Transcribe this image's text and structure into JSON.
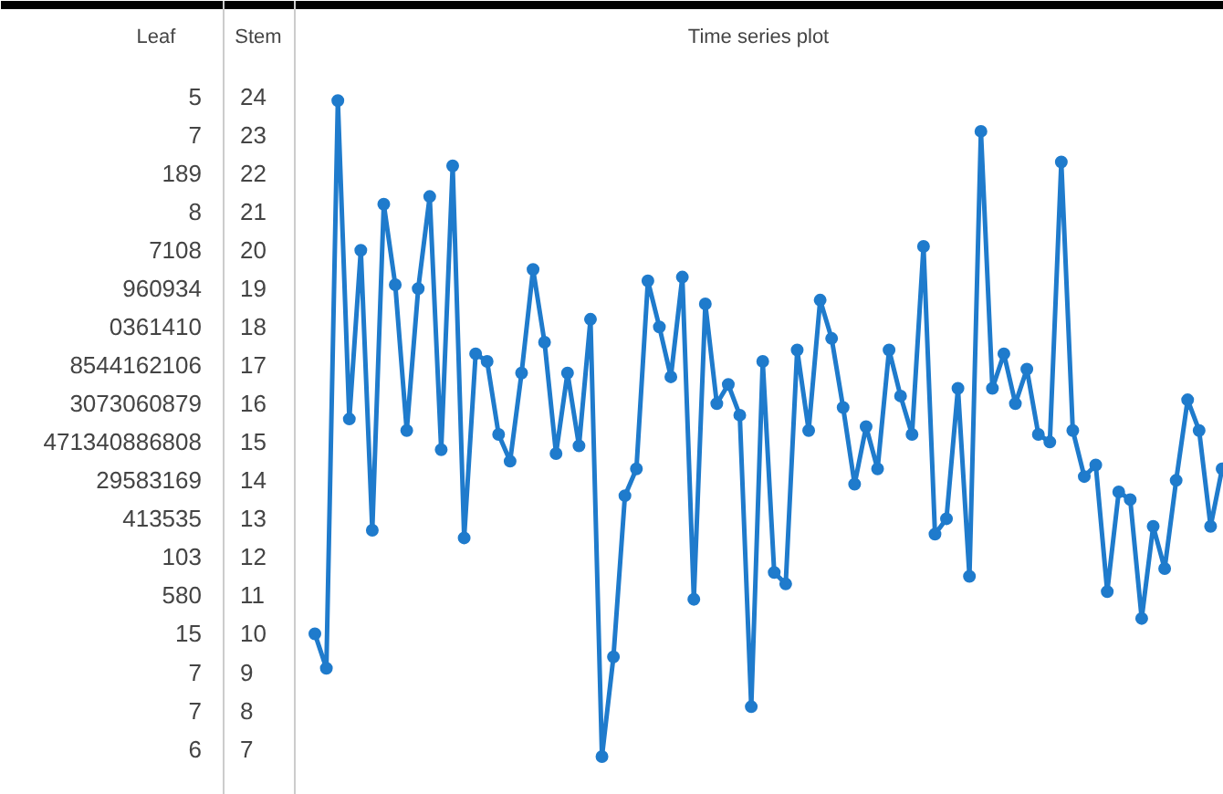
{
  "chart_data": {
    "type": "line",
    "title": "Time series plot",
    "ylabel": "Stem",
    "annotations": [
      "Leaf",
      "5",
      "7",
      "189",
      "8",
      "7108",
      "960934",
      "0361410",
      "8544162106",
      "3073060879",
      "471340886808",
      "29583169",
      "413535",
      "103",
      "580",
      "15",
      "7",
      "7",
      "6"
    ],
    "categories": [
      null,
      null,
      null,
      null,
      null,
      null,
      null,
      null,
      null,
      null,
      null,
      null,
      null,
      null,
      null,
      null,
      null,
      null,
      null,
      null,
      null,
      null,
      null,
      null,
      null,
      null,
      null,
      null,
      null,
      null,
      null,
      null,
      null,
      null,
      null,
      null,
      null,
      null,
      null,
      null,
      null,
      null,
      null,
      null,
      null,
      null,
      null,
      null,
      null,
      null,
      null,
      null,
      null,
      null,
      null,
      null,
      null,
      null,
      null,
      null,
      null,
      null,
      null,
      null,
      null,
      null,
      null,
      null,
      null,
      null,
      null,
      null,
      null,
      null,
      null,
      null,
      null,
      null,
      null,
      null
    ],
    "values": [
      10.0,
      9.1,
      23.9,
      15.6,
      20.0,
      12.7,
      21.2,
      19.1,
      15.3,
      19.0,
      21.4,
      14.8,
      22.2,
      12.5,
      17.3,
      17.1,
      15.2,
      14.5,
      16.8,
      19.5,
      17.6,
      14.7,
      16.8,
      14.9,
      18.2,
      6.8,
      9.4,
      13.6,
      14.3,
      19.2,
      18.0,
      16.7,
      19.3,
      10.9,
      18.6,
      16.0,
      16.5,
      15.7,
      8.1,
      17.1,
      11.6,
      11.3,
      17.4,
      15.3,
      18.7,
      17.7,
      15.9,
      13.9,
      15.4,
      14.3,
      17.4,
      16.2,
      15.2,
      20.1,
      12.6,
      13.0,
      16.4,
      11.5,
      23.1,
      16.4,
      17.3,
      16.0,
      16.9,
      15.2,
      15.0,
      22.3,
      15.3,
      14.1,
      14.4,
      11.1,
      13.7,
      13.5,
      10.4,
      12.8,
      11.7,
      14.0,
      16.1,
      15.3,
      12.8,
      14.3
    ],
    "color": "#1f7bcc",
    "marker": "circle",
    "line_style": "solid",
    "ylim": [
      5.8,
      26.5
    ],
    "yticks": [
      24,
      23,
      22,
      21,
      20,
      19,
      18,
      17,
      16,
      15,
      14,
      13,
      12,
      11,
      10,
      9,
      8,
      7
    ]
  }
}
